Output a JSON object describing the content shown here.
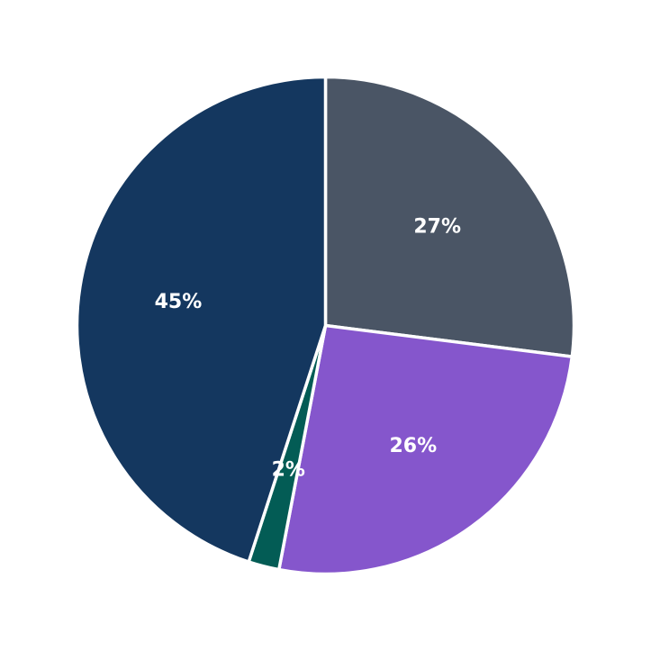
{
  "chart_data": {
    "type": "pie",
    "start_angle_deg": 90,
    "direction": "clockwise",
    "slices": [
      {
        "value": 27,
        "label": "27%",
        "color": "#4a5565"
      },
      {
        "value": 26,
        "label": "26%",
        "color": "#8556cc"
      },
      {
        "value": 2,
        "label": "2%",
        "color": "#035c55"
      },
      {
        "value": 45,
        "label": "45%",
        "color": "#14375f"
      }
    ]
  }
}
